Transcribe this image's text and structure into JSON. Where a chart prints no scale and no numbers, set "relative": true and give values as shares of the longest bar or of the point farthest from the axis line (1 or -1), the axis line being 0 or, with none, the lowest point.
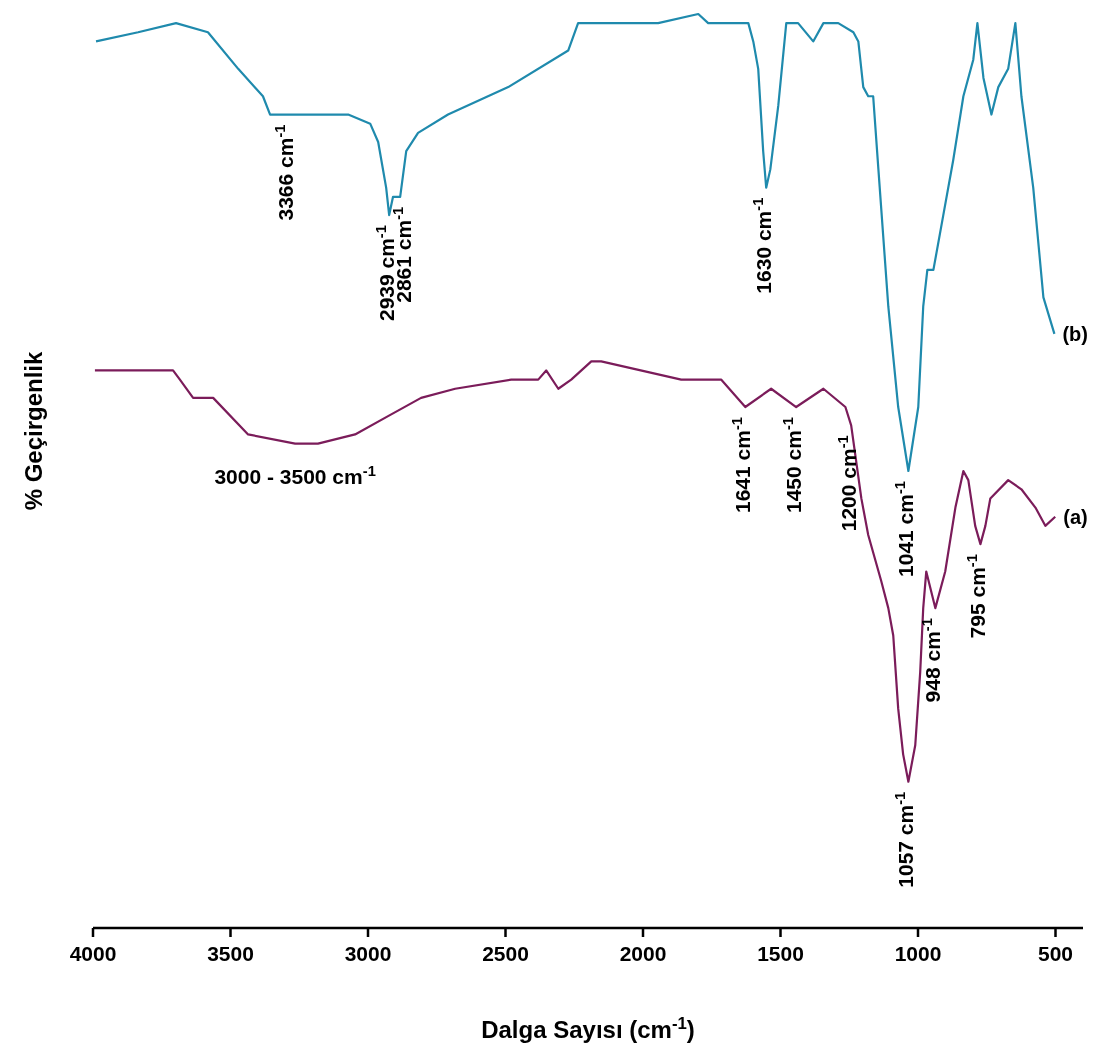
{
  "chart_data": {
    "type": "line",
    "relative": true,
    "xlabel": "Dalga Sayısı (cm$^{-1}$)",
    "ylabel": "% Geçirgenlik",
    "xlim": [
      4000,
      400
    ],
    "xticks": [
      4000,
      3500,
      3000,
      2500,
      2000,
      1500,
      1000,
      500
    ],
    "series": [
      {
        "name": "(b)",
        "color": "#1f8aad",
        "x": [
          3989,
          3836,
          3698,
          3582,
          3472,
          3382,
          3356,
          3291,
          3218,
          3072,
          2992,
          2963,
          2934,
          2923,
          2909,
          2883,
          2861,
          2818,
          2709,
          2490,
          2272,
          2236,
          1945,
          1799,
          1763,
          1690,
          1617,
          1599,
          1581,
          1563,
          1552,
          1537,
          1508,
          1479,
          1436,
          1381,
          1344,
          1290,
          1235,
          1217,
          1199,
          1181,
          1163,
          1144,
          1108,
          1072,
          1035,
          999,
          981,
          966,
          944,
          908,
          872,
          835,
          799,
          784,
          762,
          733,
          708,
          672,
          646,
          624,
          581,
          544,
          504
        ],
        "values": [
          0.97,
          0.98,
          0.99,
          0.98,
          0.94,
          0.91,
          0.89,
          0.89,
          0.89,
          0.89,
          0.88,
          0.86,
          0.81,
          0.78,
          0.8,
          0.8,
          0.85,
          0.87,
          0.89,
          0.92,
          0.96,
          0.99,
          0.99,
          1,
          0.99,
          0.99,
          0.99,
          0.97,
          0.94,
          0.85,
          0.81,
          0.83,
          0.9,
          0.99,
          0.99,
          0.97,
          0.99,
          0.99,
          0.98,
          0.97,
          0.92,
          0.91,
          0.91,
          0.83,
          0.68,
          0.57,
          0.5,
          0.57,
          0.68,
          0.72,
          0.72,
          0.78,
          0.84,
          0.91,
          0.95,
          0.99,
          0.93,
          0.89,
          0.92,
          0.94,
          0.99,
          0.91,
          0.81,
          0.69,
          0.65
        ]
      },
      {
        "name": "(a)",
        "color": "#7b1c5a",
        "x": [
          3993,
          3789,
          3709,
          3684,
          3636,
          3563,
          3436,
          3265,
          3182,
          3047,
          2927,
          2807,
          2683,
          2479,
          2381,
          2352,
          2308,
          2261,
          2188,
          2152,
          1861,
          1752,
          1716,
          1628,
          1534,
          1443,
          1344,
          1264,
          1243,
          1206,
          1181,
          1134,
          1108,
          1090,
          1072,
          1054,
          1035,
          1010,
          992,
          981,
          970,
          937,
          901,
          864,
          835,
          817,
          792,
          773,
          755,
          737,
          672,
          624,
          573,
          537,
          501
        ],
        "values": [
          0.61,
          0.61,
          0.61,
          0.6,
          0.58,
          0.58,
          0.54,
          0.53,
          0.53,
          0.54,
          0.56,
          0.58,
          0.59,
          0.6,
          0.6,
          0.61,
          0.59,
          0.6,
          0.62,
          0.62,
          0.6,
          0.6,
          0.6,
          0.57,
          0.59,
          0.57,
          0.59,
          0.57,
          0.55,
          0.47,
          0.43,
          0.38,
          0.35,
          0.32,
          0.24,
          0.19,
          0.16,
          0.2,
          0.28,
          0.35,
          0.39,
          0.35,
          0.39,
          0.46,
          0.5,
          0.49,
          0.44,
          0.42,
          0.44,
          0.47,
          0.49,
          0.48,
          0.46,
          0.44,
          0.45
        ]
      }
    ],
    "annotations": [
      {
        "text": "3000 - 3500 cm$^{-1}$",
        "x": 3265,
        "y": 0.53
      },
      {
        "text": "3366  cm$^{-1}$",
        "x": 3291,
        "y": 0.89
      },
      {
        "text": "2939  cm$^{-1}$",
        "x": 2923,
        "y": 0.78
      },
      {
        "text": "2861  cm$^{-1}$",
        "x": 2861,
        "y": 0.8
      },
      {
        "text": "1630  cm$^{-1}$",
        "x": 1552,
        "y": 0.81
      },
      {
        "text": "1641  cm$^{-1}$",
        "x": 1628,
        "y": 0.57
      },
      {
        "text": "1450  cm$^{-1}$",
        "x": 1443,
        "y": 0.57
      },
      {
        "text": "1200  cm$^{-1}$",
        "x": 1243,
        "y": 0.55
      },
      {
        "text": "1041  cm$^{-1}$",
        "x": 1035,
        "y": 0.5
      },
      {
        "text": "1057  cm$^{-1}$",
        "x": 1035,
        "y": 0.16
      },
      {
        "text": "948  cm$^{-1}$",
        "x": 937,
        "y": 0.35
      },
      {
        "text": "795  cm$^{-1}$",
        "x": 773,
        "y": 0.42
      }
    ]
  }
}
